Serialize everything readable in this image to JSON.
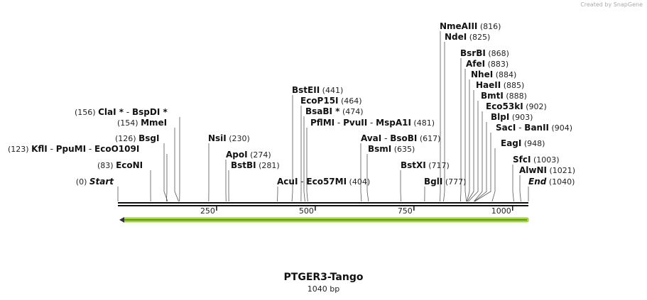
{
  "credit": "Created by SnapGene",
  "plasmid": {
    "name": "PTGER3-Tango",
    "size_label": "1040 bp",
    "length": 1040
  },
  "ticks": [
    250,
    500,
    750,
    1000
  ],
  "features": [
    {
      "name": "feature-arrow",
      "start": 1,
      "end": 1040,
      "direction": "reverse",
      "color": "#a6e22e"
    }
  ],
  "sites": [
    {
      "pos": 0,
      "text": "(0)",
      "parts": [
        "Start"
      ],
      "italic": true
    },
    {
      "pos": 83,
      "text": "(83)",
      "parts": [
        "EcoNI"
      ]
    },
    {
      "pos": 123,
      "text": "(123)",
      "parts": [
        "KflI",
        "PpuMI",
        "EcoO109I"
      ]
    },
    {
      "pos": 126,
      "text": "(126)",
      "parts": [
        "BsgI"
      ]
    },
    {
      "pos": 154,
      "text": "(154)",
      "parts": [
        "MmeI"
      ]
    },
    {
      "pos": 156,
      "text": "(156)",
      "parts": [
        "ClaI *",
        "BspDI *"
      ]
    },
    {
      "pos": 230,
      "text": "(230)",
      "parts": [
        "NsiI"
      ]
    },
    {
      "pos": 274,
      "text": "(274)",
      "parts": [
        "ApoI"
      ]
    },
    {
      "pos": 281,
      "text": "(281)",
      "parts": [
        "BstBI"
      ]
    },
    {
      "pos": 404,
      "text": "(404)",
      "parts": [
        "AcuI",
        "Eco57MI"
      ]
    },
    {
      "pos": 441,
      "text": "(441)",
      "parts": [
        "BstEII"
      ]
    },
    {
      "pos": 464,
      "text": "(464)",
      "parts": [
        "EcoP15I"
      ]
    },
    {
      "pos": 474,
      "text": "(474)",
      "parts": [
        "BsaBI *"
      ]
    },
    {
      "pos": 481,
      "text": "(481)",
      "parts": [
        "PflMI",
        "PvuII",
        "MspA1I"
      ]
    },
    {
      "pos": 617,
      "text": "(617)",
      "parts": [
        "AvaI",
        "BsoBI"
      ]
    },
    {
      "pos": 635,
      "text": "(635)",
      "parts": [
        "BsmI"
      ]
    },
    {
      "pos": 717,
      "text": "(717)",
      "parts": [
        "BstXI"
      ]
    },
    {
      "pos": 777,
      "text": "(777)",
      "parts": [
        "BglI"
      ]
    },
    {
      "pos": 816,
      "text": "(816)",
      "parts": [
        "NmeAIII"
      ]
    },
    {
      "pos": 825,
      "text": "(825)",
      "parts": [
        "NdeI"
      ]
    },
    {
      "pos": 868,
      "text": "(868)",
      "parts": [
        "BsrBI"
      ]
    },
    {
      "pos": 883,
      "text": "(883)",
      "parts": [
        "AfeI"
      ]
    },
    {
      "pos": 884,
      "text": "(884)",
      "parts": [
        "NheI"
      ]
    },
    {
      "pos": 885,
      "text": "(885)",
      "parts": [
        "HaeII"
      ]
    },
    {
      "pos": 888,
      "text": "(888)",
      "parts": [
        "BmtI"
      ]
    },
    {
      "pos": 902,
      "text": "(902)",
      "parts": [
        "Eco53kI"
      ]
    },
    {
      "pos": 903,
      "text": "(903)",
      "parts": [
        "BlpI"
      ]
    },
    {
      "pos": 904,
      "text": "(904)",
      "parts": [
        "SacI",
        "BanII"
      ]
    },
    {
      "pos": 948,
      "text": "(948)",
      "parts": [
        "EagI"
      ]
    },
    {
      "pos": 1003,
      "text": "(1003)",
      "parts": [
        "SfcI"
      ]
    },
    {
      "pos": 1021,
      "text": "(1021)",
      "parts": [
        "AlwNI"
      ]
    },
    {
      "pos": 1040,
      "text": "(1040)",
      "parts": [
        "End"
      ],
      "italic": true
    }
  ]
}
